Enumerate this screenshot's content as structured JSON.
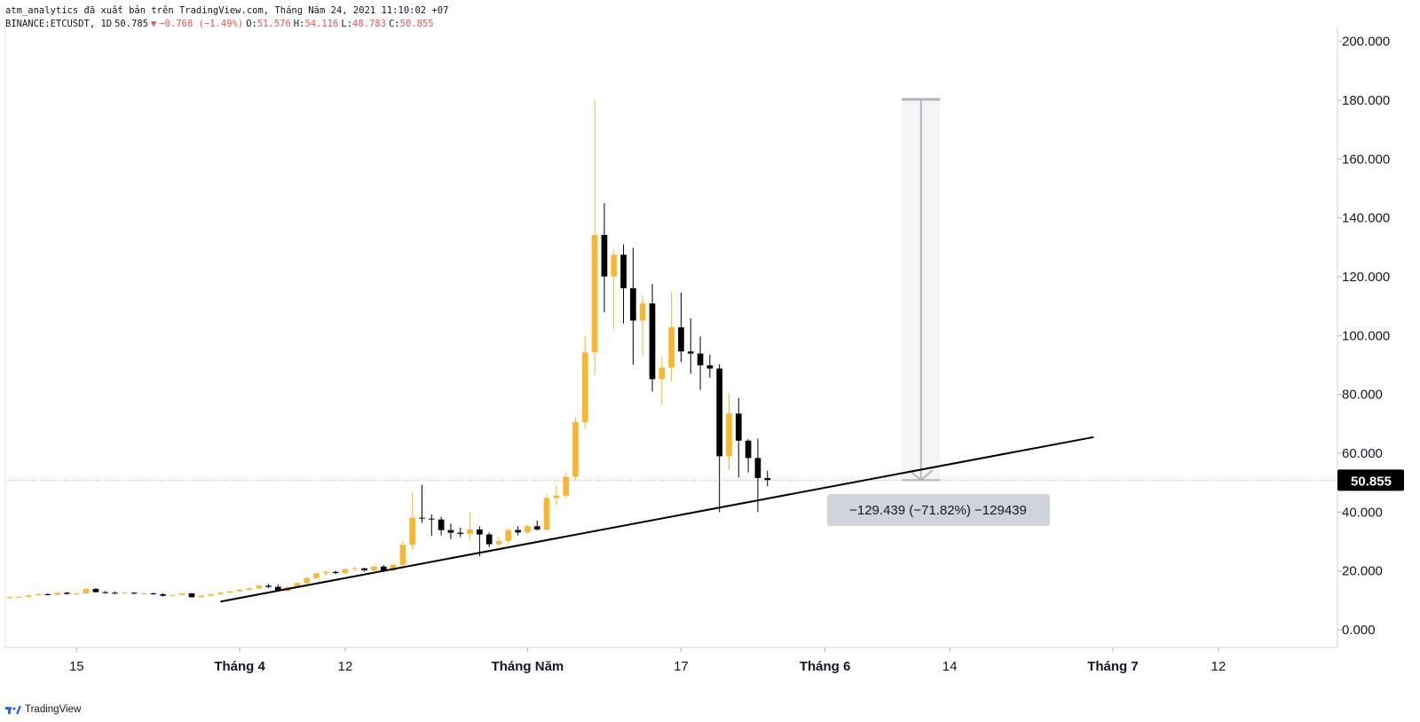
{
  "header": {
    "publisher_line": "atm_analytics đã xuất bản trên TradingView.com, Tháng Năm 24, 2021 11:10:02 +07",
    "symbol": "BINANCE:ETCUSDT, 1D",
    "last": "50.785",
    "change": "−0.768 (−1.49%)",
    "o_label": "O:",
    "o_value": "51.576",
    "h_label": "H:",
    "h_value": "54.116",
    "l_label": "L:",
    "l_value": "48.783",
    "c_label": "C:",
    "c_value": "50.855"
  },
  "footer": {
    "brand": "TradingView"
  },
  "measure": {
    "label": "−129.439 (−71.82%) −129439"
  },
  "price_badge": "50.855",
  "colors": {
    "up": "#f7b731",
    "down": "#000000",
    "grid": "#e0e3eb",
    "price_line": "#ef9a9a",
    "badge": "#000000",
    "measure_box": "#d1d4dc"
  },
  "chart_data": {
    "type": "candlestick",
    "ylim": [
      -6,
      205
    ],
    "y_ticks": [
      "0.000",
      "20.000",
      "40.000",
      "60.000",
      "80.000",
      "100.000",
      "120.000",
      "140.000",
      "160.000",
      "180.000",
      "200.000"
    ],
    "y_tick_values": [
      0,
      20,
      40,
      60,
      80,
      100,
      120,
      140,
      160,
      180,
      200
    ],
    "x_ticks": [
      {
        "label": "15",
        "date": "2021-03-15"
      },
      {
        "label": "Tháng 4",
        "date": "2021-04-01"
      },
      {
        "label": "12",
        "date": "2021-04-12"
      },
      {
        "label": "Tháng Năm",
        "date": "2021-05-01"
      },
      {
        "label": "17",
        "date": "2021-05-17"
      },
      {
        "label": "Tháng 6",
        "date": "2021-06-01"
      },
      {
        "label": "14",
        "date": "2021-06-14"
      },
      {
        "label": "Tháng 7",
        "date": "2021-07-01"
      },
      {
        "label": "12",
        "date": "2021-07-12"
      }
    ],
    "x_range": [
      "2021-03-08",
      "2021-07-22"
    ],
    "last_price": 50.855,
    "trendline": [
      [
        "2021-03-30",
        9.6
      ],
      [
        "2021-06-29",
        65.5
      ]
    ],
    "measure_range": {
      "from_date": "2021-06-09",
      "to_date": "2021-06-13",
      "from": 180.3,
      "to": 50.9
    },
    "candles": [
      [
        "2021-03-08",
        10.9,
        11.3,
        10.6,
        11.1
      ],
      [
        "2021-03-09",
        11.1,
        11.5,
        10.9,
        11.2
      ],
      [
        "2021-03-10",
        11.2,
        11.9,
        11.0,
        11.7
      ],
      [
        "2021-03-11",
        11.7,
        12.4,
        11.5,
        12.1
      ],
      [
        "2021-03-12",
        12.1,
        12.5,
        11.7,
        11.9
      ],
      [
        "2021-03-13",
        11.9,
        12.8,
        11.8,
        12.6
      ],
      [
        "2021-03-14",
        12.6,
        12.9,
        12.0,
        12.2
      ],
      [
        "2021-03-15",
        12.2,
        12.6,
        11.8,
        12.4
      ],
      [
        "2021-03-16",
        12.4,
        14.3,
        12.2,
        13.9
      ],
      [
        "2021-03-17",
        13.9,
        14.2,
        12.7,
        12.8
      ],
      [
        "2021-03-18",
        12.8,
        13.2,
        12.3,
        12.6
      ],
      [
        "2021-03-19",
        12.6,
        13.0,
        12.2,
        12.5
      ],
      [
        "2021-03-20",
        12.5,
        12.9,
        12.3,
        12.6
      ],
      [
        "2021-03-21",
        12.6,
        12.8,
        12.1,
        12.3
      ],
      [
        "2021-03-22",
        12.3,
        12.7,
        12.0,
        12.4
      ],
      [
        "2021-03-23",
        12.4,
        12.6,
        11.9,
        12.1
      ],
      [
        "2021-03-24",
        12.1,
        12.5,
        11.3,
        11.6
      ],
      [
        "2021-03-25",
        11.6,
        12.0,
        11.2,
        11.9
      ],
      [
        "2021-03-26",
        11.9,
        12.6,
        11.7,
        12.4
      ],
      [
        "2021-03-27",
        12.4,
        12.5,
        11.0,
        11.1
      ],
      [
        "2021-03-28",
        11.1,
        11.9,
        10.9,
        11.6
      ],
      [
        "2021-03-29",
        11.6,
        12.3,
        11.4,
        12.1
      ],
      [
        "2021-03-30",
        12.1,
        12.9,
        11.9,
        12.6
      ],
      [
        "2021-03-31",
        12.6,
        13.3,
        12.3,
        13.1
      ],
      [
        "2021-04-01",
        13.1,
        13.9,
        12.8,
        13.6
      ],
      [
        "2021-04-02",
        13.6,
        14.4,
        13.3,
        14.1
      ],
      [
        "2021-04-03",
        14.1,
        15.3,
        13.9,
        15.0
      ],
      [
        "2021-04-04",
        15.0,
        15.6,
        14.2,
        14.6
      ],
      [
        "2021-04-05",
        14.6,
        15.4,
        13.0,
        13.2
      ],
      [
        "2021-04-06",
        13.2,
        14.8,
        13.0,
        14.5
      ],
      [
        "2021-04-07",
        14.5,
        16.2,
        14.2,
        15.9
      ],
      [
        "2021-04-08",
        15.9,
        17.9,
        15.6,
        17.6
      ],
      [
        "2021-04-09",
        17.6,
        19.5,
        17.2,
        19.2
      ],
      [
        "2021-04-10",
        19.2,
        20.2,
        18.4,
        19.7
      ],
      [
        "2021-04-11",
        19.7,
        20.1,
        18.9,
        19.3
      ],
      [
        "2021-04-12",
        19.3,
        20.9,
        18.7,
        20.6
      ],
      [
        "2021-04-13",
        20.6,
        21.5,
        20.0,
        20.9
      ],
      [
        "2021-04-14",
        20.9,
        21.1,
        19.8,
        20.2
      ],
      [
        "2021-04-15",
        20.2,
        21.8,
        19.9,
        21.5
      ],
      [
        "2021-04-16",
        21.5,
        22.0,
        19.7,
        20.1
      ],
      [
        "2021-04-17",
        20.1,
        22.4,
        19.8,
        22.1
      ],
      [
        "2021-04-18",
        22.1,
        30.1,
        20.6,
        28.9
      ],
      [
        "2021-04-19",
        28.9,
        46.7,
        27.2,
        38.1
      ],
      [
        "2021-04-20",
        38.1,
        49.3,
        36.4,
        37.8
      ],
      [
        "2021-04-21",
        37.8,
        39.2,
        32.0,
        37.5
      ],
      [
        "2021-04-22",
        37.5,
        38.4,
        32.1,
        33.9
      ],
      [
        "2021-04-23",
        33.9,
        36.1,
        30.8,
        33.0
      ],
      [
        "2021-04-24",
        33.0,
        34.7,
        31.5,
        32.6
      ],
      [
        "2021-04-25",
        32.6,
        39.9,
        30.1,
        34.1
      ],
      [
        "2021-04-26",
        34.1,
        35.2,
        25.0,
        32.4
      ],
      [
        "2021-04-27",
        32.4,
        33.1,
        28.1,
        29.1
      ],
      [
        "2021-04-28",
        29.1,
        31.6,
        28.4,
        30.2
      ],
      [
        "2021-04-29",
        30.2,
        34.6,
        29.0,
        33.9
      ],
      [
        "2021-04-30",
        33.9,
        35.2,
        32.1,
        33.1
      ],
      [
        "2021-05-01",
        33.1,
        35.8,
        32.6,
        35.2
      ],
      [
        "2021-05-02",
        35.2,
        37.1,
        33.8,
        34.1
      ],
      [
        "2021-05-03",
        34.1,
        46.0,
        33.6,
        44.8
      ],
      [
        "2021-05-04",
        44.8,
        49.0,
        42.3,
        45.6
      ],
      [
        "2021-05-05",
        45.6,
        53.2,
        44.7,
        52.0
      ],
      [
        "2021-05-06",
        52.0,
        72.3,
        51.1,
        70.6
      ],
      [
        "2021-05-07",
        70.6,
        99.8,
        68.2,
        94.3
      ],
      [
        "2021-05-08",
        94.3,
        180.3,
        86.7,
        134.2
      ],
      [
        "2021-05-09",
        134.2,
        145.0,
        107.9,
        120.1
      ],
      [
        "2021-05-10",
        120.1,
        129.4,
        102.0,
        127.5
      ],
      [
        "2021-05-11",
        127.5,
        131.0,
        104.1,
        116.1
      ],
      [
        "2021-05-12",
        116.1,
        129.8,
        90.1,
        105.1
      ],
      [
        "2021-05-13",
        105.1,
        113.7,
        93.0,
        110.9
      ],
      [
        "2021-05-14",
        110.9,
        117.6,
        81.0,
        85.2
      ],
      [
        "2021-05-15",
        85.2,
        93.0,
        76.4,
        89.1
      ],
      [
        "2021-05-16",
        89.1,
        114.9,
        84.5,
        102.8
      ],
      [
        "2021-05-17",
        102.8,
        114.6,
        91.0,
        94.6
      ],
      [
        "2021-05-18",
        94.6,
        105.9,
        87.0,
        93.9
      ],
      [
        "2021-05-19",
        93.9,
        99.7,
        81.5,
        89.9
      ],
      [
        "2021-05-20",
        89.9,
        93.6,
        85.7,
        88.8
      ],
      [
        "2021-05-21",
        88.8,
        90.3,
        40.0,
        59.0
      ],
      [
        "2021-05-22",
        59.0,
        80.3,
        54.3,
        73.5
      ],
      [
        "2021-05-23",
        73.5,
        78.8,
        51.8,
        64.3
      ],
      [
        "2021-05-24",
        64.3,
        64.8,
        53.5,
        58.4
      ],
      [
        "2021-05-25",
        58.4,
        65.0,
        40.0,
        51.6
      ],
      [
        "2021-05-26",
        51.6,
        54.1,
        48.8,
        50.9
      ]
    ]
  }
}
